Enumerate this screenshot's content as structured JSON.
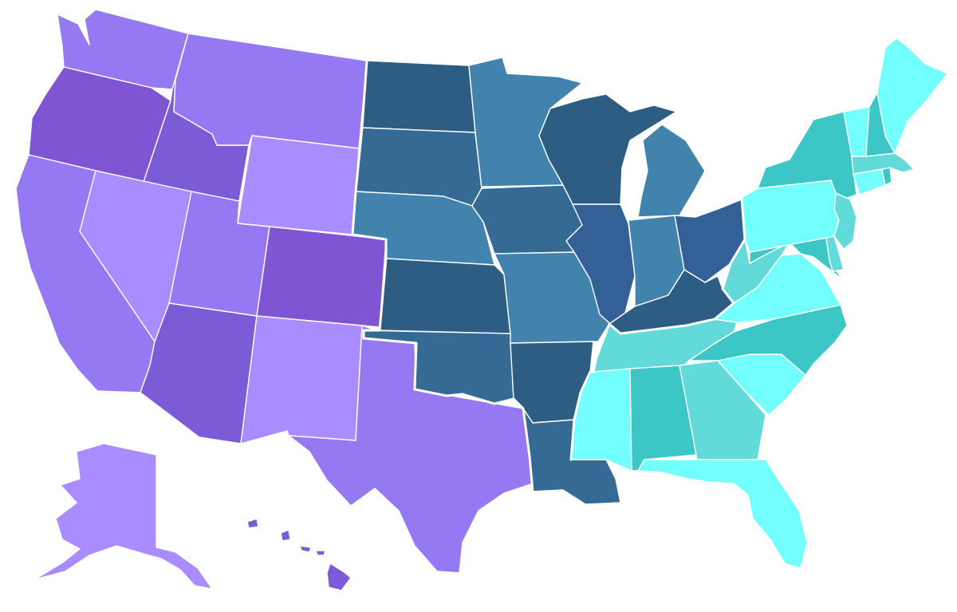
{
  "map": {
    "type": "choropleth",
    "subject": "United States",
    "palette": {
      "west_light": "#A98CFF",
      "west_mid": "#9479F2",
      "west_dark": "#7B5BD6",
      "west_darkest": "#7F55D3",
      "central_light": "#4283AE",
      "central_mid": "#356A95",
      "central_dark": "#2E5D84",
      "central_blue": "#336096",
      "east_light": "#74FFFF",
      "east_mid": "#62DADA",
      "east_dark": "#3DC6C6"
    },
    "states": [
      {
        "abbr": "WA",
        "color": "#9479F2"
      },
      {
        "abbr": "OR",
        "color": "#7F55D3"
      },
      {
        "abbr": "CA",
        "color": "#9479F2"
      },
      {
        "abbr": "ID",
        "color": "#7B5BD6"
      },
      {
        "abbr": "NV",
        "color": "#A98CFF"
      },
      {
        "abbr": "MT",
        "color": "#9479F2"
      },
      {
        "abbr": "WY",
        "color": "#A98CFF"
      },
      {
        "abbr": "UT",
        "color": "#9479F2"
      },
      {
        "abbr": "CO",
        "color": "#7F55D3"
      },
      {
        "abbr": "AZ",
        "color": "#7B5BD6"
      },
      {
        "abbr": "NM",
        "color": "#A98CFF"
      },
      {
        "abbr": "TX",
        "color": "#9479F2"
      },
      {
        "abbr": "AK",
        "color": "#A98CFF"
      },
      {
        "abbr": "HI",
        "color": "#7B5BD6"
      },
      {
        "abbr": "ND",
        "color": "#2E5D84"
      },
      {
        "abbr": "SD",
        "color": "#356A95"
      },
      {
        "abbr": "NE",
        "color": "#4283AE"
      },
      {
        "abbr": "KS",
        "color": "#2E5D84"
      },
      {
        "abbr": "OK",
        "color": "#356A95"
      },
      {
        "abbr": "MN",
        "color": "#4283AE"
      },
      {
        "abbr": "IA",
        "color": "#356A95"
      },
      {
        "abbr": "MO",
        "color": "#4283AE"
      },
      {
        "abbr": "AR",
        "color": "#2E5D84"
      },
      {
        "abbr": "LA",
        "color": "#356A95"
      },
      {
        "abbr": "WI",
        "color": "#2E5D84"
      },
      {
        "abbr": "IL",
        "color": "#336096"
      },
      {
        "abbr": "MI",
        "color": "#4283AE"
      },
      {
        "abbr": "IN",
        "color": "#4283AE"
      },
      {
        "abbr": "OH",
        "color": "#336096"
      },
      {
        "abbr": "KY",
        "color": "#2E5D84"
      },
      {
        "abbr": "TN",
        "color": "#62DADA"
      },
      {
        "abbr": "MS",
        "color": "#74FFFF"
      },
      {
        "abbr": "AL",
        "color": "#3DC6C6"
      },
      {
        "abbr": "GA",
        "color": "#62DADA"
      },
      {
        "abbr": "FL",
        "color": "#74FFFF"
      },
      {
        "abbr": "SC",
        "color": "#74FFFF"
      },
      {
        "abbr": "NC",
        "color": "#3DC6C6"
      },
      {
        "abbr": "VA",
        "color": "#74FFFF"
      },
      {
        "abbr": "WV",
        "color": "#62DADA"
      },
      {
        "abbr": "MD",
        "color": "#3DC6C6"
      },
      {
        "abbr": "DE",
        "color": "#62DADA"
      },
      {
        "abbr": "NJ",
        "color": "#62DADA"
      },
      {
        "abbr": "PA",
        "color": "#74FFFF"
      },
      {
        "abbr": "NY",
        "color": "#3DC6C6"
      },
      {
        "abbr": "CT",
        "color": "#74FFFF"
      },
      {
        "abbr": "RI",
        "color": "#3DC6C6"
      },
      {
        "abbr": "MA",
        "color": "#62DADA"
      },
      {
        "abbr": "VT",
        "color": "#74FFFF"
      },
      {
        "abbr": "NH",
        "color": "#3DC6C6"
      },
      {
        "abbr": "ME",
        "color": "#74FFFF"
      }
    ]
  }
}
